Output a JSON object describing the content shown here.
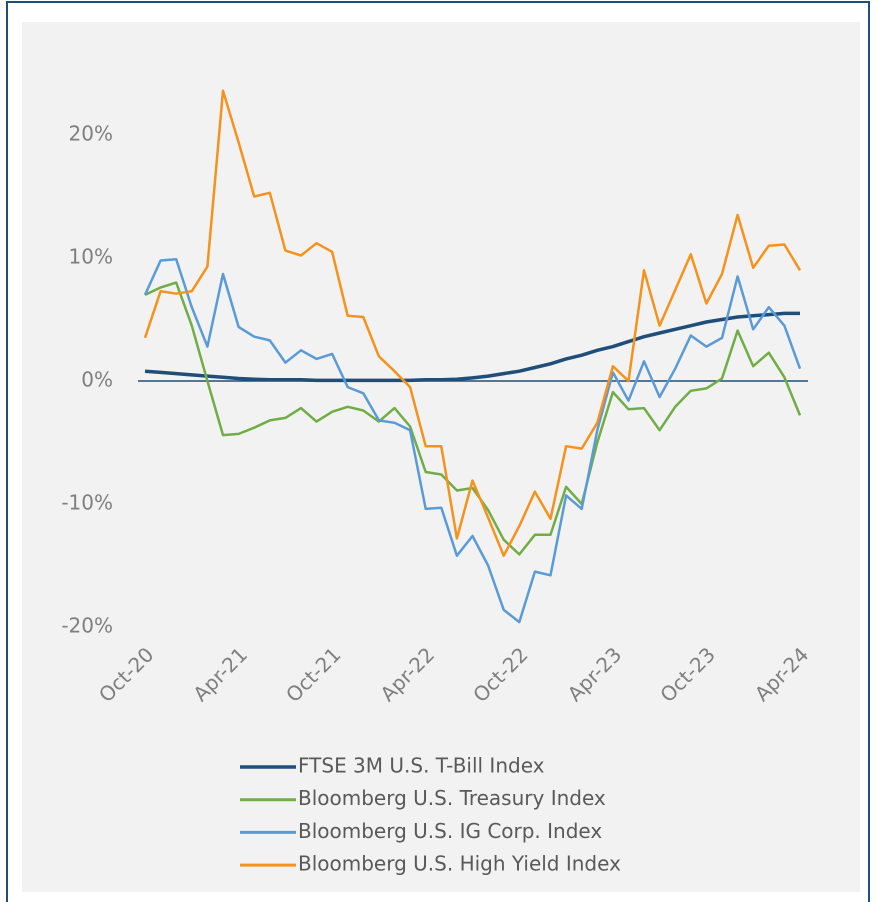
{
  "chart_data": {
    "type": "line",
    "categories": [
      "Oct-20",
      null,
      null,
      null,
      null,
      null,
      "Apr-21",
      null,
      null,
      null,
      null,
      null,
      "Oct-21",
      null,
      null,
      null,
      null,
      null,
      "Apr-22",
      null,
      null,
      null,
      null,
      null,
      "Oct-22",
      null,
      null,
      null,
      null,
      null,
      "Apr-23",
      null,
      null,
      null,
      null,
      null,
      "Oct-23",
      null,
      null,
      null,
      null,
      null,
      "Apr-24"
    ],
    "series": [
      {
        "name": "FTSE 3M U.S. T-Bill Index",
        "color": "#1f4e79",
        "values": [
          0.8,
          0.7,
          0.6,
          0.5,
          0.4,
          0.3,
          0.2,
          0.15,
          0.1,
          0.1,
          0.1,
          0.05,
          0.05,
          0.05,
          0.05,
          0.05,
          0.05,
          0.05,
          0.1,
          0.1,
          0.15,
          0.25,
          0.4,
          0.6,
          0.8,
          1.1,
          1.4,
          1.8,
          2.1,
          2.5,
          2.8,
          3.2,
          3.6,
          3.9,
          4.2,
          4.5,
          4.8,
          5.0,
          5.2,
          5.3,
          5.4,
          5.5,
          5.5
        ]
      },
      {
        "name": "Bloomberg U.S. Treasury Index",
        "color": "#70ad47",
        "values": [
          7.0,
          7.6,
          8.0,
          4.5,
          0,
          -4.4,
          -4.3,
          -3.8,
          -3.2,
          -3.0,
          -2.2,
          -3.3,
          -2.5,
          -2.1,
          -2.4,
          -3.3,
          -2.2,
          -3.7,
          -7.4,
          -7.6,
          -8.9,
          -8.7,
          -10.5,
          -12.9,
          -14.1,
          -12.5,
          -12.5,
          -8.6,
          -10.0,
          -5,
          -0.9,
          -2.3,
          -2.2,
          -4.0,
          -2.1,
          -0.8,
          -0.6,
          0.2,
          4.1,
          1.2,
          2.3,
          0.3,
          -2.8
        ]
      },
      {
        "name": "Bloomberg U.S. IG Corp. Index",
        "color": "#5b9bd5",
        "values": [
          7.0,
          9.8,
          9.9,
          6.0,
          2.8,
          8.7,
          4.4,
          3.6,
          3.3,
          1.5,
          2.5,
          1.8,
          2.2,
          -0.5,
          -1.0,
          -3.2,
          -3.4,
          -4.0,
          -10.4,
          -10.3,
          -14.2,
          -12.6,
          -15.0,
          -18.6,
          -19.6,
          -15.5,
          -15.8,
          -9.3,
          -10.4,
          -4.0,
          0.7,
          -1.6,
          1.6,
          -1.3,
          1.0,
          3.7,
          2.8,
          3.5,
          8.5,
          4.2,
          6.0,
          4.5,
          1.0
        ]
      },
      {
        "name": "Bloomberg U.S. High Yield Index",
        "color": "#f5921e",
        "values": [
          3.5,
          7.3,
          7.1,
          7.3,
          9.3,
          23.6,
          19.4,
          15.0,
          15.3,
          10.6,
          10.2,
          11.2,
          10.5,
          5.3,
          5.2,
          2.0,
          0.8,
          -0.5,
          -5.3,
          -5.3,
          -12.8,
          -8.1,
          -11.1,
          -14.2,
          -11.8,
          -9.0,
          -11.2,
          -5.3,
          -5.5,
          -3.4,
          1.2,
          0,
          9.0,
          4.5,
          7.4,
          10.3,
          6.3,
          8.7,
          13.5,
          9.2,
          11.0,
          11.1,
          9.0
        ]
      }
    ],
    "ylim": [
      -20,
      25
    ],
    "yticks": [
      {
        "value": -20,
        "label": "-20%"
      },
      {
        "value": -10,
        "label": "-10%"
      },
      {
        "value": 0,
        "label": "0%"
      },
      {
        "value": 10,
        "label": "10%"
      },
      {
        "value": 20,
        "label": "20%"
      }
    ],
    "grid": false,
    "legend": "bottom"
  }
}
